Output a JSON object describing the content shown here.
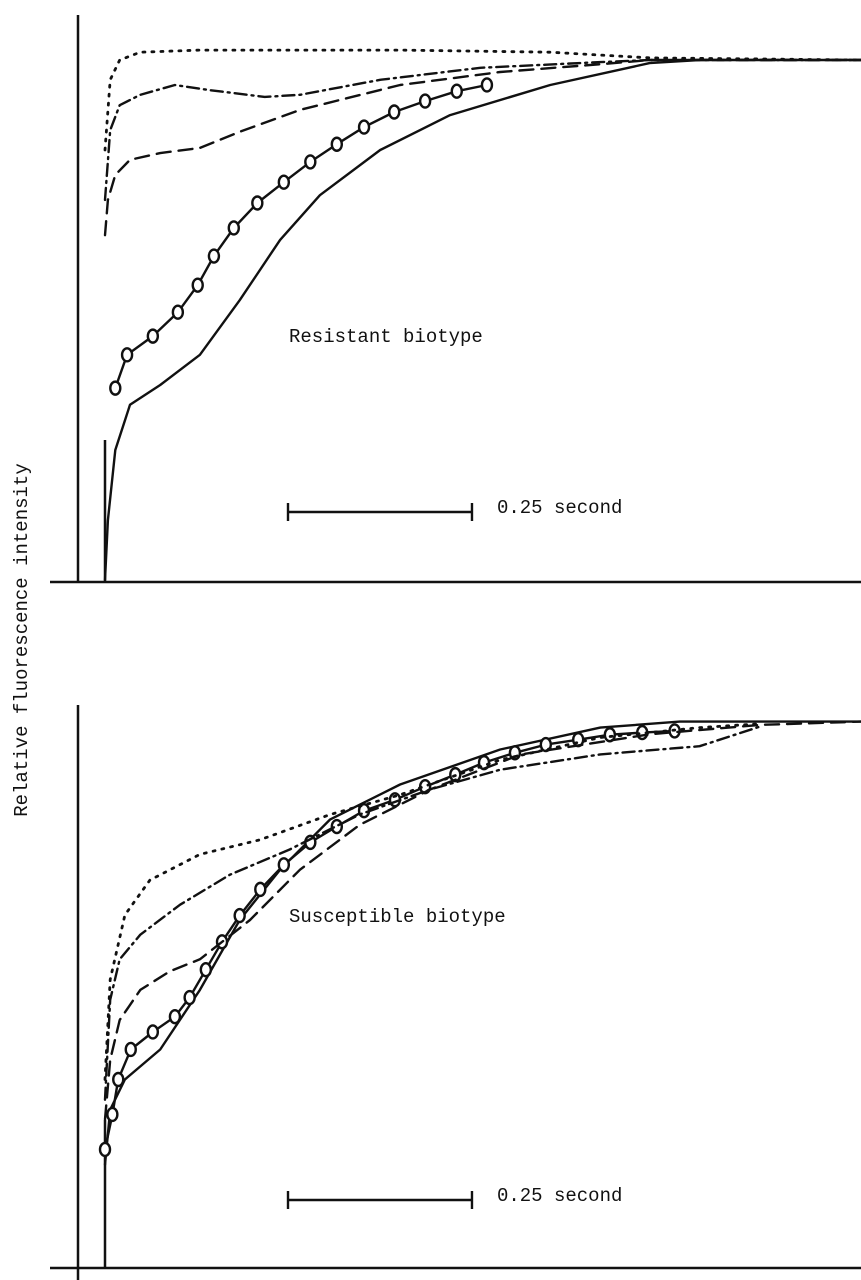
{
  "ylabel": "Relative fluorescence intensity",
  "chart_data": [
    {
      "type": "line",
      "annotation": "Resistant biotype",
      "scale_bar": {
        "value": 0.25,
        "label": "0.25 second"
      },
      "xlim": [
        0,
        1.03
      ],
      "ylim": [
        0,
        1.1
      ],
      "series": [
        {
          "style": "solid",
          "color": "#111",
          "x": [
            0,
            0.004,
            0.014,
            0.034,
            0.075,
            0.129,
            0.183,
            0.238,
            0.292,
            0.374,
            0.469,
            0.605,
            0.74,
            0.808,
            1.027
          ],
          "values": [
            0,
            0.115,
            0.25,
            0.337,
            0.375,
            0.433,
            0.538,
            0.654,
            0.74,
            0.827,
            0.894,
            0.952,
            0.994,
            1.0,
            1.0
          ]
        },
        {
          "style": "solid",
          "marker": "circle",
          "color": "#111",
          "x": [
            0.014,
            0.03,
            0.065,
            0.099,
            0.126,
            0.148,
            0.175,
            0.207,
            0.243,
            0.279,
            0.315,
            0.352,
            0.393,
            0.435,
            0.478,
            0.519
          ],
          "values": [
            0.369,
            0.433,
            0.469,
            0.515,
            0.567,
            0.623,
            0.677,
            0.725,
            0.765,
            0.804,
            0.838,
            0.871,
            0.9,
            0.921,
            0.94,
            0.952
          ]
        },
        {
          "style": "dashed",
          "color": "#111",
          "x": [
            0,
            0.004,
            0.014,
            0.034,
            0.075,
            0.129,
            0.183,
            0.265,
            0.401,
            0.537,
            0.673,
            0.741,
            1.027
          ],
          "values": [
            0.663,
            0.731,
            0.779,
            0.808,
            0.821,
            0.831,
            0.862,
            0.904,
            0.952,
            0.977,
            0.992,
            1.0,
            1.0
          ]
        },
        {
          "style": "dashdot",
          "color": "#111",
          "x": [
            0,
            0.007,
            0.02,
            0.048,
            0.095,
            0.143,
            0.217,
            0.265,
            0.374,
            0.51,
            0.673,
            0.741,
            1.027
          ],
          "values": [
            0.731,
            0.865,
            0.913,
            0.933,
            0.952,
            0.942,
            0.929,
            0.933,
            0.962,
            0.985,
            0.996,
            1.0,
            1.0
          ]
        },
        {
          "style": "dotted",
          "color": "#111",
          "x": [
            0,
            0.007,
            0.02,
            0.048,
            0.129,
            0.401,
            0.605,
            0.741,
            1.027
          ],
          "values": [
            0.827,
            0.962,
            1.0,
            1.015,
            1.019,
            1.019,
            1.015,
            1.004,
            1.0
          ]
        }
      ]
    },
    {
      "type": "line",
      "annotation": "Susceptible biotype",
      "scale_bar": {
        "value": 0.25,
        "label": "0.25 second"
      },
      "xlim": [
        0,
        1.03
      ],
      "ylim": [
        0,
        1.1
      ],
      "series": [
        {
          "style": "solid",
          "color": "#111",
          "x": [
            0,
            0.007,
            0.027,
            0.075,
            0.129,
            0.183,
            0.238,
            0.306,
            0.401,
            0.537,
            0.673,
            0.781,
            1.027
          ],
          "values": [
            0.189,
            0.29,
            0.345,
            0.4,
            0.509,
            0.637,
            0.729,
            0.821,
            0.885,
            0.949,
            0.989,
            1.0,
            1.0
          ]
        },
        {
          "style": "solid",
          "marker": "circle",
          "color": "#111",
          "x": [
            0,
            0.01,
            0.018,
            0.035,
            0.065,
            0.095,
            0.115,
            0.137,
            0.159,
            0.183,
            0.211,
            0.243,
            0.279,
            0.315,
            0.352,
            0.394,
            0.435,
            0.476,
            0.515,
            0.557,
            0.599,
            0.643,
            0.686,
            0.73,
            0.774
          ],
          "values": [
            0.217,
            0.281,
            0.345,
            0.4,
            0.432,
            0.46,
            0.495,
            0.546,
            0.597,
            0.645,
            0.693,
            0.738,
            0.779,
            0.808,
            0.837,
            0.857,
            0.881,
            0.903,
            0.925,
            0.943,
            0.958,
            0.967,
            0.976,
            0.98,
            0.983
          ]
        },
        {
          "style": "dashed",
          "color": "#111",
          "x": [
            0,
            0.007,
            0.02,
            0.048,
            0.088,
            0.129,
            0.197,
            0.265,
            0.346,
            0.442,
            0.565,
            0.741,
            0.89,
            1.027
          ],
          "values": [
            0.272,
            0.381,
            0.454,
            0.509,
            0.543,
            0.565,
            0.637,
            0.729,
            0.811,
            0.876,
            0.94,
            0.977,
            0.994,
            1.0
          ]
        },
        {
          "style": "dashdot",
          "color": "#111",
          "x": [
            0,
            0.007,
            0.02,
            0.048,
            0.102,
            0.17,
            0.251,
            0.346,
            0.442,
            0.537,
            0.673,
            0.808,
            0.89
          ],
          "values": [
            0.308,
            0.491,
            0.565,
            0.61,
            0.665,
            0.72,
            0.766,
            0.83,
            0.876,
            0.912,
            0.94,
            0.955,
            0.991
          ]
        },
        {
          "style": "dotted",
          "color": "#111",
          "x": [
            0,
            0.007,
            0.027,
            0.061,
            0.129,
            0.211,
            0.306,
            0.401,
            0.537,
            0.673,
            0.808,
            0.89
          ],
          "values": [
            0.345,
            0.528,
            0.646,
            0.71,
            0.757,
            0.784,
            0.83,
            0.866,
            0.93,
            0.971,
            0.989,
            0.996
          ]
        }
      ]
    }
  ]
}
